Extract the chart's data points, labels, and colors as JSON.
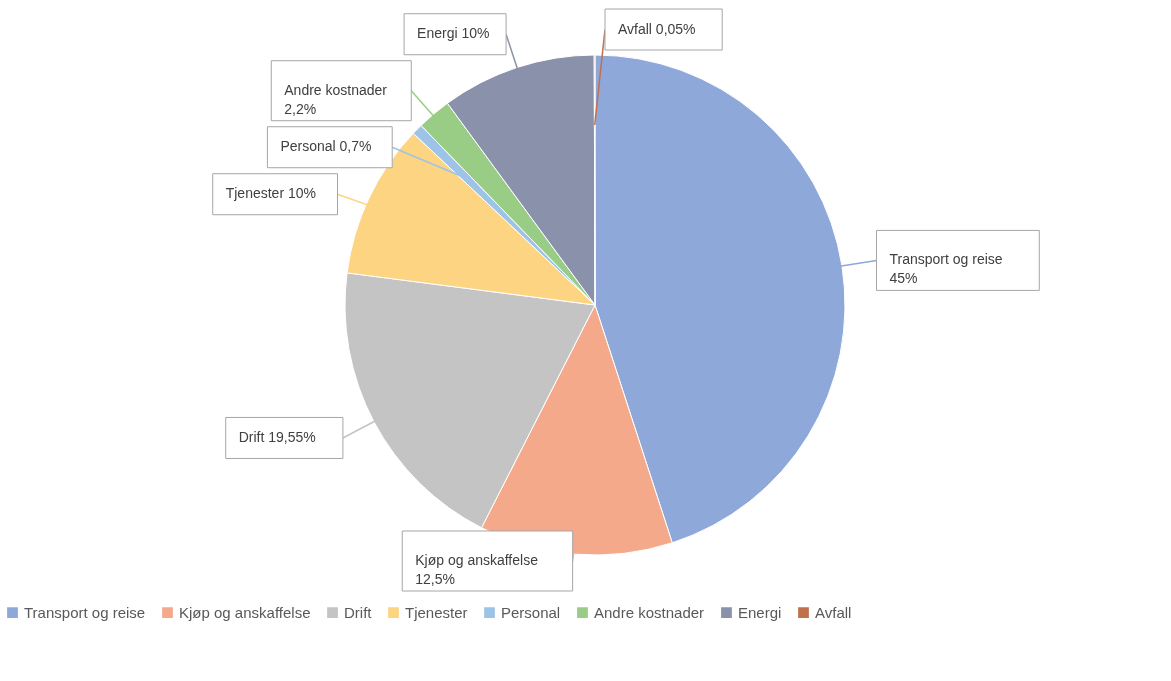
{
  "chart_data": {
    "type": "pie",
    "categories": [
      "Transport og reise",
      "Kjøp og anskaffelse",
      "Drift",
      "Tjenester",
      "Personal",
      "Andre kostnader",
      "Energi",
      "Avfall"
    ],
    "values": [
      45,
      12.5,
      19.55,
      10,
      0.7,
      2.2,
      10,
      0.05
    ],
    "value_labels": [
      "45%",
      "12,5%",
      "19,55%",
      "10%",
      "0,7%",
      "2,2%",
      "10%",
      "0,05%"
    ],
    "colors": [
      "#8fa8da",
      "#f4a98a",
      "#c4c4c4",
      "#fdd482",
      "#9dc3e6",
      "#99cc85",
      "#8a91ab",
      "#c0704a"
    ],
    "legend": "bottom"
  }
}
